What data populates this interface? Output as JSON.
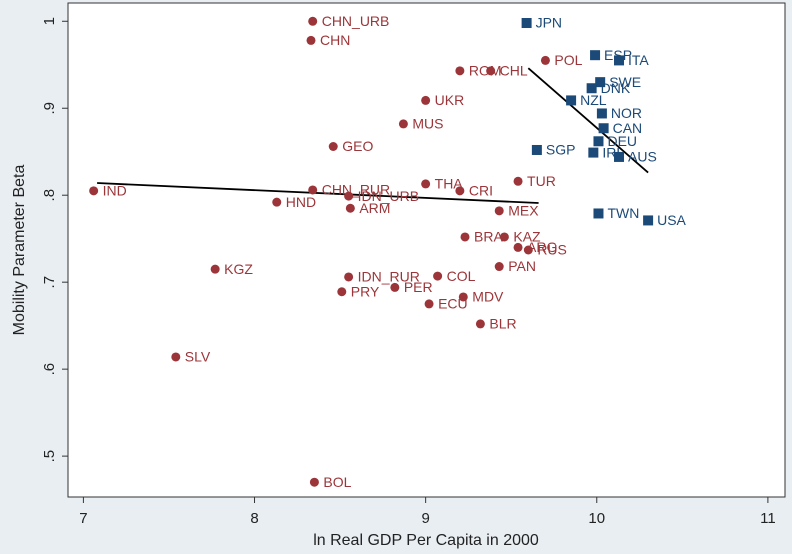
{
  "chart_data": {
    "type": "scatter",
    "xlabel": "ln Real GDP Per Capita in 2000",
    "ylabel": "Mobility Parameter Beta",
    "xlim": [
      6.91,
      11.1
    ],
    "ylim": [
      0.453,
      1.021
    ],
    "xticks": [
      7,
      8,
      9,
      10,
      11
    ],
    "yticks": [
      {
        "value": 0.5,
        "label": ".5"
      },
      {
        "value": 0.6,
        "label": ".6"
      },
      {
        "value": 0.7,
        "label": ".7"
      },
      {
        "value": 0.8,
        "label": ".8"
      },
      {
        "value": 0.9,
        "label": ".9"
      },
      1
    ],
    "series": [
      {
        "color": "#9c3539",
        "marker": "circle",
        "labels": [
          "CHN_URB",
          "CHN",
          "ROM",
          "CHL",
          "POL",
          "UKR",
          "MUS",
          "GEO",
          "THA",
          "CRI",
          "TUR",
          "IND",
          "CHN_RUR",
          "IDN_URB",
          "HND",
          "ARM",
          "MEX",
          "BRA",
          "KAZ",
          "ARG",
          "RUS",
          "PAN",
          "KGZ",
          "IDN_RUR",
          "COL",
          "PRY",
          "PER",
          "MDV",
          "ECU",
          "BLR",
          "SLV",
          "BOL"
        ],
        "x": [
          8.34,
          8.33,
          9.2,
          9.38,
          9.7,
          9.0,
          8.87,
          8.46,
          9.0,
          9.2,
          9.54,
          7.06,
          8.34,
          8.55,
          8.13,
          8.56,
          9.43,
          9.23,
          9.46,
          9.54,
          9.6,
          9.43,
          7.77,
          8.55,
          9.07,
          8.51,
          8.82,
          9.22,
          9.02,
          9.32,
          7.54,
          8.35
        ],
        "y": [
          1.0,
          0.978,
          0.943,
          0.943,
          0.955,
          0.909,
          0.882,
          0.856,
          0.813,
          0.805,
          0.816,
          0.805,
          0.806,
          0.799,
          0.792,
          0.785,
          0.782,
          0.752,
          0.752,
          0.74,
          0.737,
          0.718,
          0.715,
          0.706,
          0.707,
          0.689,
          0.694,
          0.683,
          0.675,
          0.652,
          0.614,
          0.47
        ]
      },
      {
        "color": "#1c4a78",
        "marker": "square",
        "labels": [
          "JPN",
          "ESP",
          "ITA",
          "SWE",
          "DNK",
          "NZL",
          "NOR",
          "CAN",
          "DEU",
          "IRL",
          "AUS",
          "SGP",
          "TWN",
          "USA"
        ],
        "x": [
          9.59,
          9.99,
          10.13,
          10.02,
          9.97,
          9.85,
          10.03,
          10.04,
          10.01,
          9.98,
          10.13,
          9.65,
          10.01,
          10.3
        ],
        "y": [
          0.998,
          0.961,
          0.955,
          0.93,
          0.923,
          0.909,
          0.894,
          0.877,
          0.862,
          0.849,
          0.844,
          0.852,
          0.779,
          0.771
        ]
      }
    ],
    "fit_lines": [
      {
        "color": "#000000",
        "x": [
          7.08,
          9.66
        ],
        "y": [
          0.814,
          0.791
        ]
      },
      {
        "color": "#000000",
        "x": [
          9.6,
          10.3
        ],
        "y": [
          0.946,
          0.826
        ]
      }
    ]
  }
}
